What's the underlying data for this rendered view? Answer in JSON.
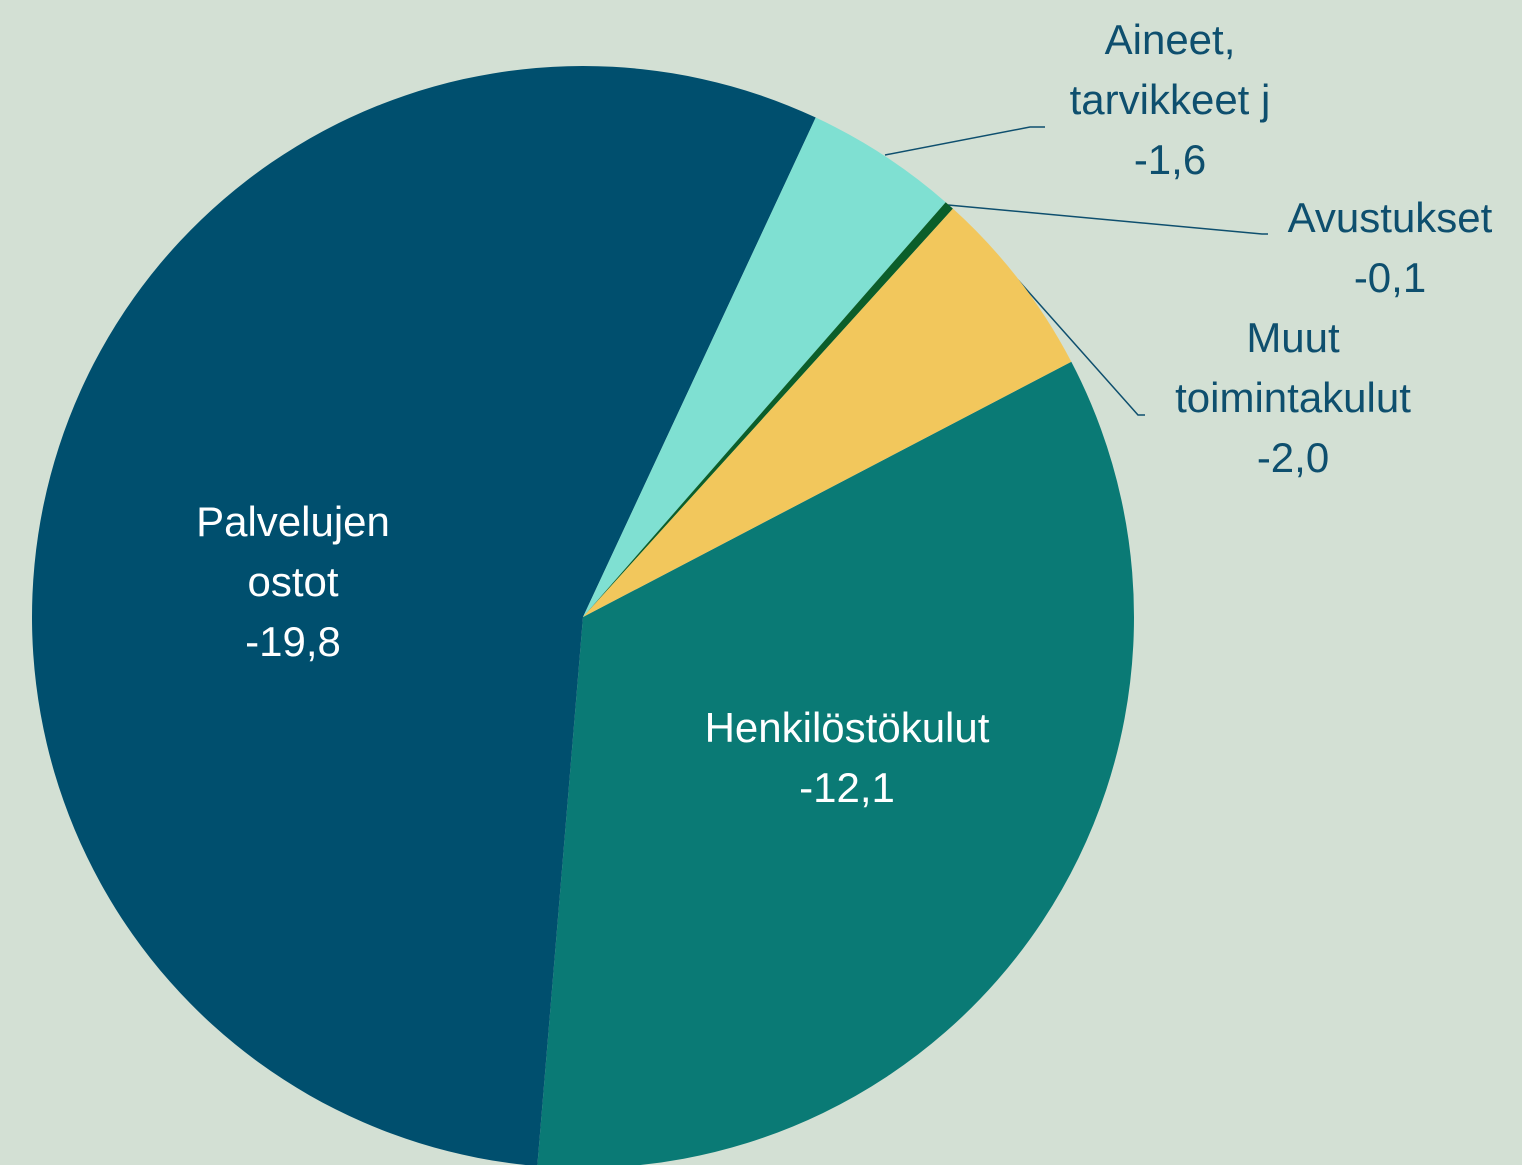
{
  "chart_data": {
    "type": "pie",
    "categories": [
      "Henkilöstökulut",
      "Palvelujen ostot",
      "Aineet, tarvikkeet j",
      "Avustukset",
      "Muut toimintakulut"
    ],
    "values": [
      -12.1,
      -19.8,
      -1.6,
      -0.1,
      -2.0
    ],
    "value_labels": [
      "-12,1",
      "-19,8",
      "-1,6",
      "-0,1",
      "-2,0"
    ],
    "colors": [
      "#0a7a75",
      "#004f6e",
      "#7fe0d2",
      "#0b5e2a",
      "#f2c75c"
    ]
  }
}
